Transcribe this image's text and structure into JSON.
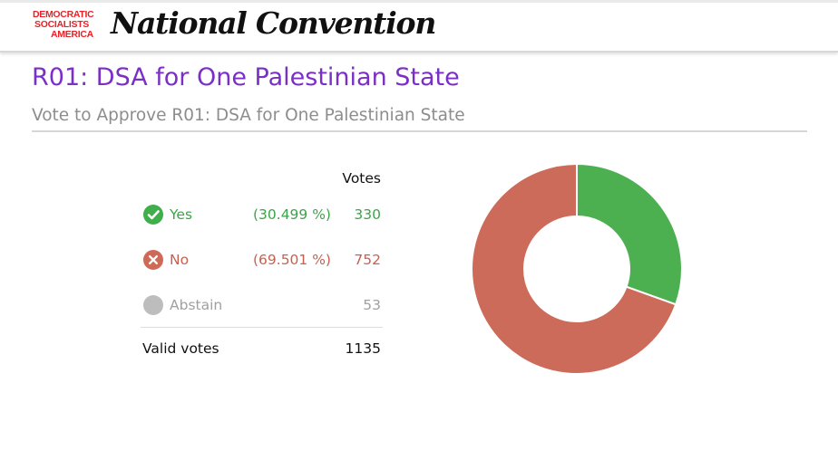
{
  "header": {
    "logo_lines": [
      "Democratic",
      "Socialists",
      "America"
    ],
    "title": "National Convention"
  },
  "page": {
    "title": "R01: DSA for One Palestinian State",
    "subtitle": "Vote to Approve R01: DSA for One Palestinian State"
  },
  "results": {
    "votes_header": "Votes",
    "rows": [
      {
        "label": "Yes",
        "pct": "(30.499 %)",
        "count": "330",
        "icon": "check-circle-icon",
        "color": "#3aa548"
      },
      {
        "label": "No",
        "pct": "(69.501 %)",
        "count": "752",
        "icon": "x-circle-icon",
        "color": "#c9604e"
      },
      {
        "label": "Abstain",
        "pct": "",
        "count": "53",
        "icon": "circle-icon",
        "color": "#a0a0a0"
      }
    ],
    "valid_label": "Valid votes",
    "valid_count": "1135"
  },
  "chart_data": {
    "type": "pie",
    "categories": [
      "Yes",
      "No"
    ],
    "values": [
      330,
      752
    ],
    "colors": [
      "#4caf50",
      "#cd6b5b"
    ],
    "hole": true
  },
  "colors": {
    "accent": "#7b2fc7",
    "brand_red": "#ec1f27",
    "yes": "#4caf50",
    "no": "#cd6b5b",
    "abstain": "#bdbdbd"
  }
}
